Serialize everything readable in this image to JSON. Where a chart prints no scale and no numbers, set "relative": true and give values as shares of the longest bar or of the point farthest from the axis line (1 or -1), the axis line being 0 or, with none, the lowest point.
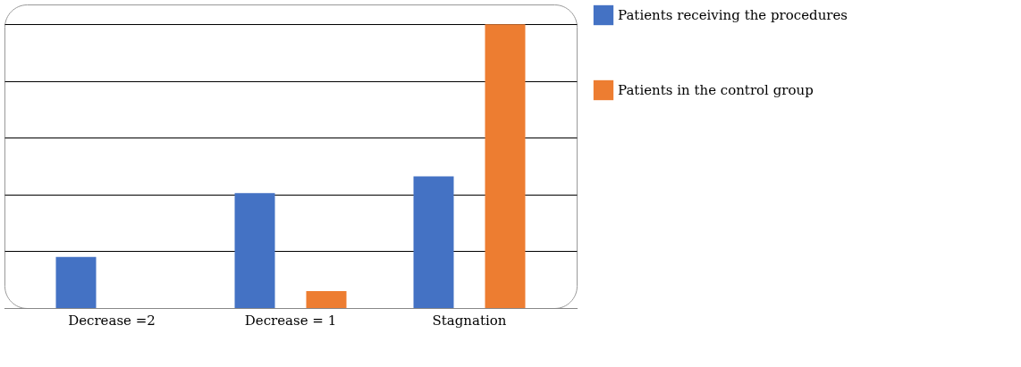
{
  "chart_data": {
    "type": "bar",
    "relative": true,
    "categories": [
      "Decrease =2",
      "Decrease = 1",
      "Stagnation"
    ],
    "series": [
      {
        "name": "Patients receiving the procedures",
        "color": "#4472c4",
        "values": [
          0.18,
          0.405,
          0.464
        ]
      },
      {
        "name": "Patients in the control group",
        "color": "#ed7d31",
        "values": [
          0,
          0.06,
          1
        ]
      }
    ],
    "grid": "y",
    "legend": "right"
  }
}
